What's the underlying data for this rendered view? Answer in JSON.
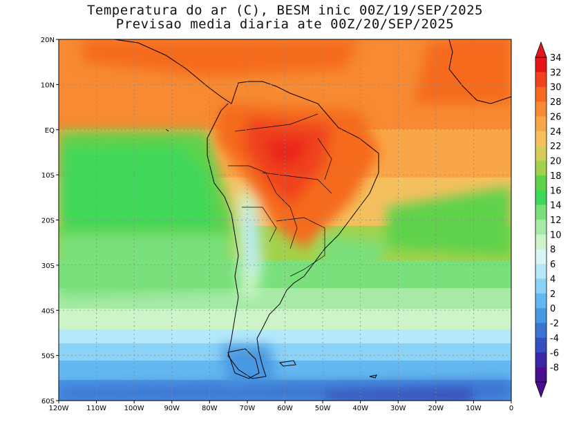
{
  "title": {
    "line1": "Temperatura do ar (C), BESM inic 00Z/19/SEP/2025",
    "line2": "Previsao media diaria ate 00Z/20/SEP/2025"
  },
  "axes": {
    "lon_ticks": [
      "120W",
      "110W",
      "100W",
      "90W",
      "80W",
      "70W",
      "60W",
      "50W",
      "40W",
      "30W",
      "20W",
      "10W",
      "0"
    ],
    "lat_ticks": [
      "20N",
      "10N",
      "EQ",
      "10S",
      "20S",
      "30S",
      "40S",
      "50S",
      "60S"
    ]
  },
  "colorbar": {
    "labels": [
      "34",
      "32",
      "30",
      "28",
      "26",
      "24",
      "22",
      "20",
      "18",
      "16",
      "14",
      "12",
      "10",
      "8",
      "6",
      "4",
      "2",
      "0",
      "-2",
      "-4",
      "-6",
      "-8"
    ],
    "colors": [
      "#e8141c",
      "#f0421c",
      "#f56a1e",
      "#f78a32",
      "#f9a648",
      "#f5c05e",
      "#d6cc58",
      "#a2d24c",
      "#5fd24c",
      "#3fd858",
      "#7ae07c",
      "#a6eaa6",
      "#cdf4c8",
      "#d9f6f4",
      "#b4e8fa",
      "#8ad2f6",
      "#64b8f0",
      "#4898e2",
      "#3c74d2",
      "#3450c0",
      "#3828a8",
      "#4a1090"
    ]
  }
}
